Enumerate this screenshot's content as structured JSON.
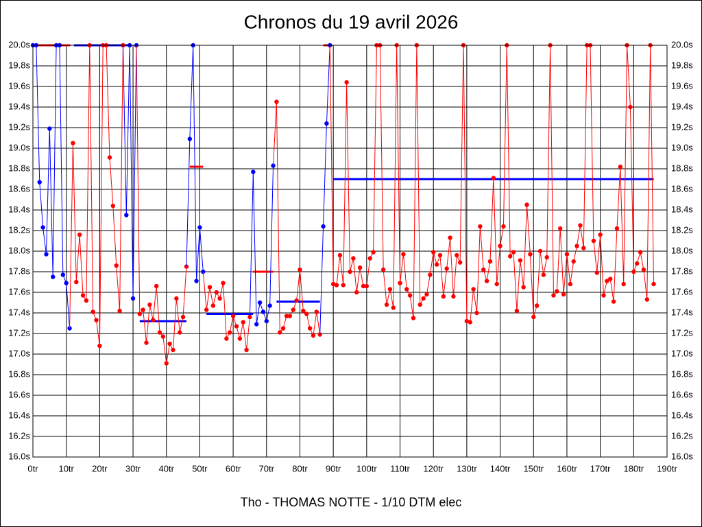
{
  "chart_data": {
    "type": "line",
    "title": "Chronos du 19 avril 2026",
    "footer": "Tho - THOMAS NOTTE - 1/10 DTM elec",
    "xlim": [
      0,
      190
    ],
    "ylim": [
      16.0,
      20.0
    ],
    "grid": true,
    "xticks": [
      {
        "value": 0,
        "label": "0tr"
      },
      {
        "value": 10,
        "label": "10tr"
      },
      {
        "value": 20,
        "label": "20tr"
      },
      {
        "value": 30,
        "label": "30tr"
      },
      {
        "value": 40,
        "label": "40tr"
      },
      {
        "value": 50,
        "label": "50tr"
      },
      {
        "value": 60,
        "label": "60tr"
      },
      {
        "value": 70,
        "label": "70tr"
      },
      {
        "value": 80,
        "label": "80tr"
      },
      {
        "value": 90,
        "label": "90tr"
      },
      {
        "value": 100,
        "label": "100tr"
      },
      {
        "value": 110,
        "label": "110tr"
      },
      {
        "value": 120,
        "label": "120tr"
      },
      {
        "value": 130,
        "label": "130tr"
      },
      {
        "value": 140,
        "label": "140tr"
      },
      {
        "value": 150,
        "label": "150tr"
      },
      {
        "value": 160,
        "label": "160tr"
      },
      {
        "value": 170,
        "label": "170tr"
      },
      {
        "value": 180,
        "label": "180tr"
      },
      {
        "value": 190,
        "label": "190tr"
      }
    ],
    "yticks": [
      {
        "value": 16.0,
        "label": "16.0s"
      },
      {
        "value": 16.2,
        "label": "16.2s"
      },
      {
        "value": 16.4,
        "label": "16.4s"
      },
      {
        "value": 16.6,
        "label": "16.6s"
      },
      {
        "value": 16.8,
        "label": "16.8s"
      },
      {
        "value": 17.0,
        "label": "17.0s"
      },
      {
        "value": 17.2,
        "label": "17.2s"
      },
      {
        "value": 17.4,
        "label": "17.4s"
      },
      {
        "value": 17.6,
        "label": "17.6s"
      },
      {
        "value": 17.8,
        "label": "17.8s"
      },
      {
        "value": 18.0,
        "label": "18.0s"
      },
      {
        "value": 18.2,
        "label": "18.2s"
      },
      {
        "value": 18.4,
        "label": "18.4s"
      },
      {
        "value": 18.6,
        "label": "18.6s"
      },
      {
        "value": 18.8,
        "label": "18.8s"
      },
      {
        "value": 19.0,
        "label": "19.0s"
      },
      {
        "value": 19.2,
        "label": "19.2s"
      },
      {
        "value": 19.4,
        "label": "19.4s"
      },
      {
        "value": 19.6,
        "label": "19.6s"
      },
      {
        "value": 19.8,
        "label": "19.8s"
      },
      {
        "value": 20.0,
        "label": "20.0s"
      }
    ],
    "series": [
      {
        "color": "#0000ff",
        "x": [
          0,
          1,
          2,
          3,
          4,
          5,
          6,
          7,
          8,
          9,
          10,
          11
        ],
        "values": [
          20.0,
          20.0,
          18.67,
          18.23,
          17.97,
          19.19,
          17.75,
          20.0,
          20.0,
          17.77,
          17.69,
          17.25
        ]
      },
      {
        "color": "#ff0000",
        "x": [
          12,
          13,
          14,
          15,
          16,
          17,
          18,
          19,
          20,
          21,
          22,
          23,
          24,
          25,
          26,
          27
        ],
        "values": [
          19.05,
          17.7,
          18.16,
          17.57,
          17.52,
          20.0,
          17.41,
          17.33,
          17.08,
          20.0,
          20.0,
          18.91,
          18.44,
          17.86,
          17.42,
          20.0
        ]
      },
      {
        "color": "#0000ff",
        "x": [
          28,
          29,
          30,
          31
        ],
        "values": [
          18.35,
          20.0,
          17.54,
          20.0
        ]
      },
      {
        "color": "#ff0000",
        "x": [
          32,
          33,
          34,
          35,
          36,
          37,
          38,
          39,
          40,
          41,
          42,
          43,
          44,
          45,
          46
        ],
        "values": [
          17.39,
          17.43,
          17.11,
          17.48,
          17.33,
          17.66,
          17.21,
          17.17,
          16.91,
          17.1,
          17.04,
          17.54,
          17.21,
          17.36,
          17.85
        ]
      },
      {
        "color": "#0000ff",
        "x": [
          47,
          48,
          49,
          50,
          51
        ],
        "values": [
          19.09,
          20.0,
          17.71,
          18.23,
          17.8
        ]
      },
      {
        "color": "#ff0000",
        "x": [
          52,
          53,
          54,
          55,
          56,
          57,
          58,
          59,
          60,
          61,
          62,
          63,
          64,
          65
        ],
        "values": [
          17.43,
          17.65,
          17.47,
          17.6,
          17.54,
          17.69,
          17.15,
          17.21,
          17.37,
          17.27,
          17.15,
          17.31,
          17.04,
          17.36
        ]
      },
      {
        "color": "#0000ff",
        "x": [
          66,
          67,
          68,
          69,
          70,
          71,
          72
        ],
        "values": [
          18.77,
          17.29,
          17.5,
          17.41,
          17.32,
          17.47,
          18.83
        ]
      },
      {
        "color": "#ff0000",
        "x": [
          73,
          74,
          75,
          76,
          77,
          78,
          79,
          80,
          81,
          82,
          83,
          84,
          85,
          86
        ],
        "values": [
          19.45,
          17.21,
          17.25,
          17.37,
          17.37,
          17.43,
          17.52,
          17.82,
          17.42,
          17.39,
          17.25,
          17.18,
          17.41,
          17.19
        ]
      },
      {
        "color": "#0000ff",
        "x": [
          87,
          88,
          89
        ],
        "values": [
          18.24,
          19.24,
          20.0
        ]
      },
      {
        "color": "#ff0000",
        "x": [
          90,
          91,
          92,
          93,
          94,
          95,
          96,
          97,
          98,
          99,
          100,
          101,
          102,
          103,
          104,
          105,
          106,
          107,
          108,
          109,
          110,
          111,
          112,
          113,
          114,
          115,
          116,
          117,
          118,
          119,
          120,
          121,
          122,
          123,
          124,
          125,
          126,
          127,
          128,
          129,
          130,
          131,
          132,
          133,
          134,
          135,
          136,
          137,
          138,
          139,
          140,
          141,
          142,
          143,
          144,
          145,
          146,
          147,
          148,
          149,
          150,
          151,
          152,
          153,
          154,
          155,
          156,
          157,
          158,
          159,
          160,
          161,
          162,
          163,
          164,
          165,
          166,
          167,
          168,
          169,
          170,
          171,
          172,
          173,
          174,
          175,
          176,
          177,
          178,
          179,
          180,
          181,
          182,
          183,
          184,
          185,
          186
        ],
        "values": [
          17.68,
          17.67,
          17.96,
          17.67,
          19.64,
          17.8,
          17.93,
          17.6,
          17.84,
          17.66,
          17.66,
          17.93,
          17.99,
          20.0,
          20.0,
          17.82,
          17.48,
          17.63,
          17.45,
          20.0,
          17.69,
          17.97,
          17.63,
          17.57,
          17.35,
          20.0,
          17.48,
          17.54,
          17.58,
          17.77,
          17.99,
          17.87,
          17.96,
          17.56,
          17.83,
          18.13,
          17.56,
          17.96,
          17.89,
          20.0,
          17.32,
          17.31,
          17.63,
          17.4,
          18.24,
          17.82,
          17.71,
          17.9,
          18.71,
          17.68,
          18.05,
          18.24,
          20.0,
          17.95,
          17.99,
          17.42,
          17.91,
          17.65,
          18.45,
          17.97,
          17.36,
          17.47,
          18.0,
          17.77,
          17.94,
          20.0,
          17.57,
          17.61,
          18.22,
          17.58,
          17.97,
          17.68,
          17.9,
          18.05,
          18.25,
          18.03,
          20.0,
          20.0,
          18.1,
          17.79,
          18.16,
          17.57,
          17.71,
          17.73,
          17.51,
          18.22,
          18.82,
          17.68,
          20.0,
          19.4,
          17.8,
          17.88,
          17.99,
          17.82,
          17.53,
          20.0,
          17.68
        ]
      }
    ],
    "stint_averages": [
      {
        "color": "#ff0000",
        "x": [
          1.5,
          11.2
        ],
        "value": 20.0
      },
      {
        "color": "#0000ff",
        "x": [
          12.3,
          29.2
        ],
        "value": 20.0
      },
      {
        "color": "#0000ff",
        "x": [
          32,
          46
        ],
        "value": 17.32
      },
      {
        "color": "#ff0000",
        "x": [
          47,
          51
        ],
        "value": 18.82
      },
      {
        "color": "#0000ff",
        "x": [
          52,
          66
        ],
        "value": 17.39
      },
      {
        "color": "#ff0000",
        "x": [
          66,
          72
        ],
        "value": 17.8
      },
      {
        "color": "#0000ff",
        "x": [
          73,
          86
        ],
        "value": 17.51
      },
      {
        "color": "#ff0000",
        "x": [
          87,
          89
        ],
        "value": 20.0
      },
      {
        "color": "#0000ff",
        "x": [
          90,
          186
        ],
        "value": 18.7
      }
    ]
  }
}
